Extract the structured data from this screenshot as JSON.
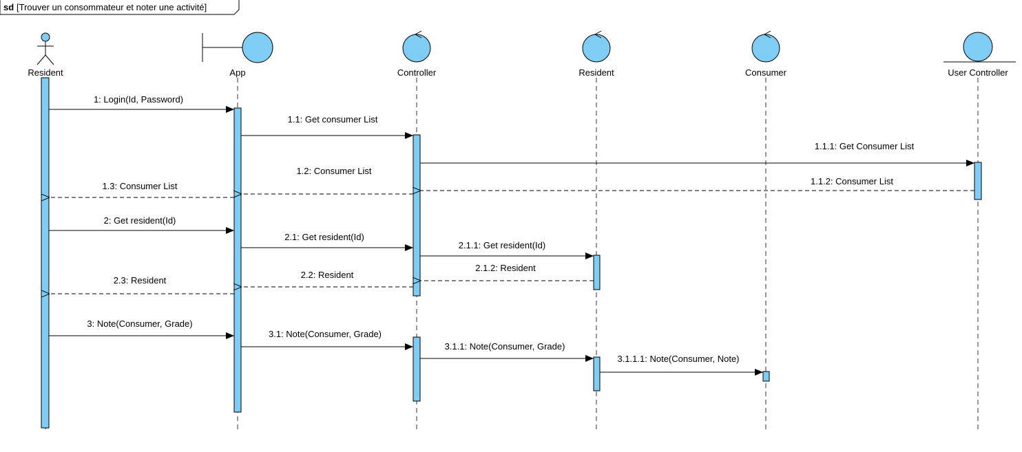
{
  "frame": {
    "keyword": "sd",
    "title": "[Trouver un consommateur et noter une activité]"
  },
  "colors": {
    "fill": "#7fcdf4",
    "line": "#000000",
    "lifeline": "#333333",
    "background": "#ffffff"
  },
  "participants": [
    {
      "id": "resident_actor",
      "label": "Resident",
      "kind": "actor-icon"
    },
    {
      "id": "app",
      "label": "App",
      "kind": "boundary-icon"
    },
    {
      "id": "controller",
      "label": "Controller",
      "kind": "control-icon"
    },
    {
      "id": "resident",
      "label": "Resident",
      "kind": "control-icon"
    },
    {
      "id": "consumer",
      "label": "Consumer",
      "kind": "control-icon"
    },
    {
      "id": "user_controller",
      "label": "User Controller",
      "kind": "entity-icon"
    }
  ],
  "messages": [
    {
      "label": "1: Login(Id, Password)",
      "from": "resident_actor",
      "to": "app",
      "type": "call"
    },
    {
      "label": "1.1: Get consumer List",
      "from": "app",
      "to": "controller",
      "type": "call"
    },
    {
      "label": "1.1.1: Get Consumer List",
      "from": "controller",
      "to": "user_controller",
      "type": "call"
    },
    {
      "label": "1.1.2: Consumer List",
      "from": "user_controller",
      "to": "controller",
      "type": "reply"
    },
    {
      "label": "1.2: Consumer List",
      "from": "controller",
      "to": "app",
      "type": "reply"
    },
    {
      "label": "1.3: Consumer List",
      "from": "app",
      "to": "resident_actor",
      "type": "reply"
    },
    {
      "label": "2: Get resident(Id)",
      "from": "resident_actor",
      "to": "app",
      "type": "call"
    },
    {
      "label": "2.1: Get resident(Id)",
      "from": "app",
      "to": "controller",
      "type": "call"
    },
    {
      "label": "2.1.1: Get resident(Id)",
      "from": "controller",
      "to": "resident",
      "type": "call"
    },
    {
      "label": "2.1.2: Resident",
      "from": "resident",
      "to": "controller",
      "type": "reply"
    },
    {
      "label": "2.2: Resident",
      "from": "controller",
      "to": "app",
      "type": "reply"
    },
    {
      "label": "2.3: Resident",
      "from": "app",
      "to": "resident_actor",
      "type": "reply"
    },
    {
      "label": "3: Note(Consumer, Grade)",
      "from": "resident_actor",
      "to": "app",
      "type": "call"
    },
    {
      "label": "3.1: Note(Consumer, Grade)",
      "from": "app",
      "to": "controller",
      "type": "call"
    },
    {
      "label": "3.1.1: Note(Consumer, Grade)",
      "from": "controller",
      "to": "resident",
      "type": "call"
    },
    {
      "label": "3.1.1.1: Note(Consumer, Note)",
      "from": "resident",
      "to": "consumer",
      "type": "call"
    }
  ]
}
